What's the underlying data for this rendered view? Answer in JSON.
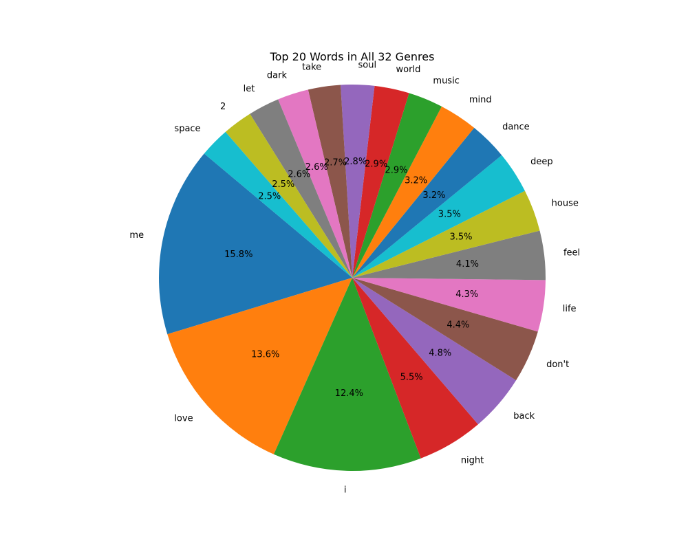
{
  "chart_data": {
    "type": "pie",
    "title": "Top 20 Words in All 32 Genres",
    "categories": [
      "me",
      "love",
      "i",
      "night",
      "back",
      "don't",
      "life",
      "feel",
      "house",
      "deep",
      "dance",
      "mind",
      "music",
      "world",
      "soul",
      "take",
      "dark",
      "let",
      "2",
      "space"
    ],
    "values": [
      15.8,
      13.6,
      12.4,
      5.5,
      4.8,
      4.4,
      4.3,
      4.1,
      3.5,
      3.5,
      3.2,
      3.2,
      2.9,
      2.9,
      2.8,
      2.7,
      2.6,
      2.6,
      2.5,
      2.5
    ],
    "value_labels": [
      "15.8%",
      "13.6%",
      "12.4%",
      "5.5%",
      "4.8%",
      "4.4%",
      "4.3%",
      "4.1%",
      "3.5%",
      "3.5%",
      "3.2%",
      "3.2%",
      "2.9%",
      "2.9%",
      "2.8%",
      "2.7%",
      "2.6%",
      "2.6%",
      "2.5%",
      "2.5%"
    ],
    "colors": [
      "#1f77b4",
      "#ff7f0e",
      "#2ca02c",
      "#d62728",
      "#9467bd",
      "#8c564b",
      "#e377c2",
      "#7f7f7f",
      "#bcbd22",
      "#17becf",
      "#1f77b4",
      "#ff7f0e",
      "#2ca02c",
      "#d62728",
      "#9467bd",
      "#8c564b",
      "#e377c2",
      "#7f7f7f",
      "#bcbd22",
      "#17becf"
    ],
    "start_angle_deg": 140,
    "direction": "counterclockwise"
  }
}
